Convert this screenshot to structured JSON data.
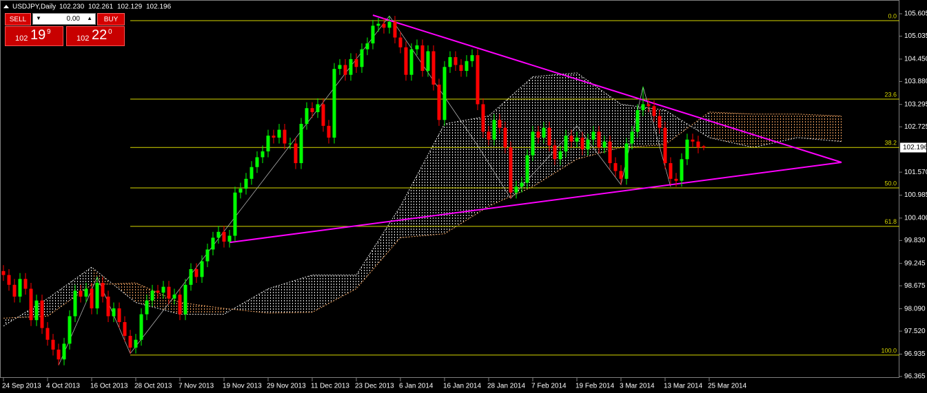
{
  "chart_data": {
    "type": "candlestick",
    "title": "USDJPY,Daily",
    "ohlc_labels": [
      "102.230",
      "102.261",
      "102.129",
      "102.196"
    ],
    "bull_color": "#00ff00",
    "bear_color": "#ff0000",
    "open": [
      99.05,
      98.95,
      98.7,
      98.4,
      98.85,
      98.6,
      97.8,
      98.3,
      97.6,
      97.3,
      97.05,
      96.8,
      97.2,
      97.9,
      98.55,
      98.4,
      98.6,
      98.1,
      98.75,
      98.4,
      97.9,
      98.1,
      97.75,
      97.4,
      97.1,
      97.3,
      97.95,
      98.3,
      98.55,
      98.5,
      98.65,
      98.35,
      98.45,
      97.95,
      98.7,
      99.1,
      98.9,
      99.3,
      99.6,
      99.9,
      100.05,
      99.8,
      99.95,
      101.05,
      101.15,
      101.4,
      101.7,
      101.95,
      102.1,
      102.5,
      102.45,
      102.65,
      102.3,
      102.3,
      101.8,
      102.8,
      103.2,
      103.1,
      103.3,
      102.75,
      102.45,
      104.2,
      104.3,
      104.05,
      104.45,
      104.25,
      104.7,
      104.85,
      105.3,
      105.35,
      105.25,
      105.4,
      105.0,
      104.75,
      104.05,
      104.7,
      104.8,
      104.15,
      104.65,
      103.8,
      102.9,
      104.25,
      104.5,
      104.3,
      104.15,
      104.4,
      104.55,
      103.3,
      102.6,
      102.4,
      102.9,
      102.7,
      102.2,
      101.05,
      101.2,
      101.3,
      102.0,
      102.6,
      102.45,
      102.7,
      102.25,
      101.9,
      102.1,
      102.5,
      102.35,
      102.45,
      102.15,
      102.4,
      102.6,
      102.2,
      102.35,
      101.8,
      101.6,
      101.4,
      102.3,
      102.6,
      103.15,
      103.3,
      103.25,
      103.0,
      102.7,
      101.8,
      101.4,
      101.35,
      101.9,
      102.4,
      102.35,
      102.23
    ],
    "high": [
      99.2,
      99.1,
      98.85,
      99.0,
      99.0,
      98.75,
      98.45,
      98.45,
      97.75,
      97.45,
      97.2,
      97.35,
      98.05,
      98.7,
      98.7,
      98.75,
      98.75,
      98.9,
      98.9,
      98.55,
      98.25,
      98.25,
      97.9,
      97.55,
      97.45,
      98.1,
      98.45,
      98.7,
      98.7,
      98.8,
      98.8,
      98.6,
      98.6,
      98.85,
      99.25,
      99.25,
      99.45,
      99.75,
      100.05,
      100.2,
      100.2,
      100.1,
      101.2,
      101.3,
      101.55,
      101.85,
      102.1,
      102.25,
      102.65,
      102.65,
      102.8,
      102.8,
      102.45,
      102.45,
      102.95,
      103.35,
      103.35,
      103.45,
      103.45,
      102.9,
      104.35,
      104.45,
      104.45,
      104.6,
      104.6,
      104.85,
      105.0,
      105.45,
      105.5,
      105.5,
      105.55,
      105.55,
      105.15,
      104.9,
      104.85,
      104.95,
      104.95,
      104.8,
      104.8,
      103.95,
      104.4,
      104.65,
      104.65,
      104.45,
      104.55,
      104.7,
      104.7,
      103.45,
      102.75,
      103.05,
      103.05,
      102.85,
      102.35,
      101.35,
      101.45,
      102.15,
      102.75,
      102.75,
      102.85,
      102.85,
      102.4,
      102.25,
      102.65,
      102.65,
      102.6,
      102.6,
      102.55,
      102.75,
      102.75,
      102.5,
      102.5,
      101.95,
      101.75,
      102.45,
      102.75,
      103.3,
      103.75,
      103.45,
      103.4,
      103.15,
      102.85,
      101.95,
      101.55,
      102.05,
      102.55,
      102.55,
      102.5,
      102.261
    ],
    "low": [
      98.8,
      98.55,
      98.25,
      98.25,
      98.45,
      97.65,
      97.65,
      97.45,
      97.15,
      96.9,
      96.65,
      96.65,
      97.05,
      97.75,
      98.25,
      98.25,
      97.95,
      97.95,
      98.25,
      97.75,
      97.75,
      97.6,
      97.25,
      96.95,
      96.95,
      97.15,
      97.8,
      98.15,
      98.35,
      98.35,
      98.2,
      98.2,
      97.8,
      97.8,
      98.55,
      98.75,
      98.75,
      99.15,
      99.45,
      99.75,
      99.65,
      99.65,
      99.8,
      100.9,
      101.0,
      101.25,
      101.55,
      101.8,
      101.95,
      102.3,
      102.3,
      102.15,
      102.15,
      101.65,
      101.65,
      102.65,
      102.95,
      102.95,
      102.6,
      102.3,
      102.3,
      104.05,
      103.9,
      103.9,
      104.1,
      104.1,
      104.55,
      104.7,
      105.15,
      105.1,
      105.1,
      104.85,
      104.6,
      103.9,
      103.9,
      104.55,
      104.0,
      104.0,
      103.65,
      102.75,
      102.75,
      104.1,
      104.15,
      104.0,
      104.0,
      104.25,
      103.15,
      102.45,
      102.25,
      102.25,
      102.55,
      102.05,
      100.9,
      100.9,
      101.05,
      101.15,
      101.85,
      102.3,
      102.3,
      102.1,
      101.75,
      101.75,
      101.95,
      102.2,
      102.2,
      102.0,
      102.0,
      102.25,
      102.05,
      102.05,
      101.65,
      101.45,
      101.25,
      101.25,
      102.15,
      102.45,
      103.0,
      103.1,
      102.85,
      102.55,
      101.65,
      101.25,
      101.2,
      101.2,
      101.75,
      102.2,
      102.05,
      102.129
    ],
    "close": [
      98.95,
      98.7,
      98.4,
      98.85,
      98.6,
      97.8,
      98.3,
      97.6,
      97.3,
      97.05,
      96.8,
      97.2,
      97.9,
      98.55,
      98.4,
      98.6,
      98.1,
      98.75,
      98.4,
      97.9,
      98.1,
      97.75,
      97.4,
      97.1,
      97.3,
      97.95,
      98.3,
      98.55,
      98.5,
      98.65,
      98.35,
      98.45,
      97.95,
      98.7,
      99.1,
      98.9,
      99.3,
      99.6,
      99.9,
      100.05,
      99.8,
      99.95,
      101.05,
      101.15,
      101.4,
      101.7,
      101.95,
      102.1,
      102.5,
      102.45,
      102.65,
      102.3,
      102.3,
      101.8,
      102.8,
      103.2,
      103.1,
      103.3,
      102.75,
      102.45,
      104.2,
      104.3,
      104.05,
      104.45,
      104.25,
      104.7,
      104.85,
      105.3,
      105.35,
      105.25,
      105.4,
      105.0,
      104.75,
      104.05,
      104.7,
      104.8,
      104.15,
      104.65,
      103.8,
      102.9,
      104.25,
      104.5,
      104.3,
      104.15,
      104.4,
      104.55,
      103.3,
      102.6,
      102.4,
      102.9,
      102.7,
      102.2,
      101.05,
      101.2,
      101.3,
      102.0,
      102.6,
      102.45,
      102.7,
      102.25,
      101.9,
      102.1,
      102.5,
      102.35,
      102.45,
      102.15,
      102.4,
      102.6,
      102.2,
      102.35,
      101.8,
      101.6,
      101.4,
      102.3,
      102.6,
      103.15,
      103.3,
      103.25,
      103.0,
      102.7,
      101.8,
      101.4,
      101.35,
      101.9,
      102.4,
      102.35,
      102.2,
      102.196
    ],
    "xlim": [
      -0.625,
      162.5
    ],
    "ylim": [
      96.365,
      105.605
    ],
    "xticks": [
      {
        "value": 0,
        "label": "24 Sep 2013"
      },
      {
        "value": 8,
        "label": "4 Oct 2013"
      },
      {
        "value": 16,
        "label": "16 Oct 2013"
      },
      {
        "value": 24,
        "label": "28 Oct 2013"
      },
      {
        "value": 32,
        "label": "7 Nov 2013"
      },
      {
        "value": 40,
        "label": "19 Nov 2013"
      },
      {
        "value": 48,
        "label": "29 Nov 2013"
      },
      {
        "value": 56,
        "label": "11 Dec 2013"
      },
      {
        "value": 64,
        "label": "23 Dec 2013"
      },
      {
        "value": 72,
        "label": "6 Jan 2014"
      },
      {
        "value": 80,
        "label": "16 Jan 2014"
      },
      {
        "value": 88,
        "label": "28 Jan 2014"
      },
      {
        "value": 96,
        "label": "7 Feb 2014"
      },
      {
        "value": 104,
        "label": "19 Feb 2014"
      },
      {
        "value": 112,
        "label": "3 Mar 2014"
      },
      {
        "value": 120,
        "label": "13 Mar 2014"
      },
      {
        "value": 128,
        "label": "25 Mar 2014"
      }
    ],
    "yticks": [
      105.605,
      105.035,
      {
        "value": 104.45,
        "label": "104.450"
      },
      {
        "value": 103.88,
        "label": "103.880"
      },
      103.295,
      102.725,
      {
        "value": 101.57,
        "label": "101.570"
      },
      100.985,
      {
        "value": 100.4,
        "label": "100.400"
      },
      {
        "value": 99.83,
        "label": "99.830"
      },
      99.245,
      98.675,
      {
        "value": 98.09,
        "label": "98.090"
      },
      {
        "value": 97.52,
        "label": "97.520"
      },
      96.935,
      96.365
    ],
    "cloud": {
      "x": [
        0,
        8,
        16,
        24,
        32,
        40,
        48,
        56,
        64,
        72,
        80,
        88,
        96,
        104,
        112,
        120,
        128,
        136,
        144,
        152
      ],
      "span_a": [
        97.65,
        98.35,
        99.15,
        98.25,
        97.95,
        97.95,
        98.6,
        98.95,
        98.95,
        100.7,
        102.8,
        103.0,
        104.0,
        104.1,
        103.3,
        103.15,
        102.45,
        102.2,
        102.45,
        102.35
      ],
      "span_b": [
        97.85,
        97.9,
        98.7,
        98.75,
        98.25,
        98.1,
        97.98,
        98.0,
        98.6,
        99.9,
        100.0,
        100.7,
        101.2,
        101.9,
        102.2,
        102.27,
        103.1,
        103.05,
        103.05,
        103.0
      ],
      "up_color": "#e8e8e8",
      "down_color": "#f4a460"
    },
    "fib": {
      "color": "#d8d800",
      "from": 23,
      "labels": [
        "0.0",
        "23.6",
        "38.2",
        "50.0",
        "61.8",
        "100.0"
      ],
      "prices": [
        105.43,
        103.43,
        102.2,
        101.17,
        100.19,
        96.91
      ]
    },
    "trendlines": {
      "color": "#ff00ff",
      "lines": [
        {
          "x": [
            67,
            152
          ],
          "y": [
            105.57,
            101.82
          ]
        },
        {
          "x": [
            41,
            152
          ],
          "y": [
            99.78,
            101.82
          ]
        }
      ]
    },
    "zigzag": {
      "color": "#b0b0b0",
      "x": [
        10,
        17,
        23,
        70,
        86,
        92,
        104,
        112,
        116,
        121
      ],
      "y": [
        96.65,
        98.9,
        96.95,
        105.55,
        102.25,
        100.9,
        102.75,
        101.25,
        103.75,
        101.2
      ]
    }
  },
  "trade_panel": {
    "sell": "SELL",
    "buy": "BUY",
    "volume": "0.00",
    "sell_price": [
      "102",
      "19",
      "9"
    ],
    "buy_price": [
      "102",
      "22",
      "0"
    ]
  }
}
